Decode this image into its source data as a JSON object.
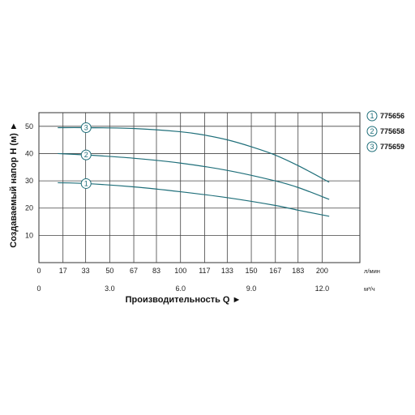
{
  "chart_data": {
    "type": "line",
    "ylabel": "Создаваемый напор H (м) ►",
    "xlabel": "Производительность Q ►",
    "ylim": [
      0,
      55
    ],
    "y_ticks": [
      10,
      20,
      30,
      40,
      50
    ],
    "x_lpm_ticks": [
      0,
      17,
      33,
      50,
      67,
      83,
      100,
      117,
      133,
      150,
      167,
      183,
      200
    ],
    "x_lpm_unit": "л/мин",
    "x_m3h_ticks": [
      "0",
      "3.0",
      "6.0",
      "9.0",
      "12.0"
    ],
    "x_m3h_unit": "м³/ч",
    "xlim_m3h": [
      0,
      13.6
    ],
    "grid": true,
    "legend_position": "right",
    "series": [
      {
        "name": "775656",
        "marker": "1",
        "color": "#1f6f7a",
        "x_m3h": [
          0.8,
          2.0,
          4.0,
          6.0,
          8.0,
          10.0,
          11.0,
          12.3
        ],
        "y": [
          29.3,
          29.0,
          27.8,
          26.0,
          23.8,
          21.0,
          19.2,
          17.0
        ]
      },
      {
        "name": "775658",
        "marker": "2",
        "color": "#1f6f7a",
        "x_m3h": [
          0.8,
          2.0,
          4.0,
          6.0,
          8.0,
          10.0,
          11.0,
          12.3
        ],
        "y": [
          40.0,
          39.5,
          38.3,
          36.5,
          33.8,
          30.0,
          27.5,
          23.2
        ]
      },
      {
        "name": "775659",
        "marker": "3",
        "color": "#1f6f7a",
        "x_m3h": [
          0.8,
          2.0,
          4.0,
          6.0,
          7.0,
          8.0,
          9.0,
          10.0,
          11.0,
          12.3
        ],
        "y": [
          49.5,
          49.5,
          49.2,
          48.0,
          46.8,
          45.0,
          42.5,
          39.5,
          35.5,
          29.5
        ]
      }
    ]
  }
}
